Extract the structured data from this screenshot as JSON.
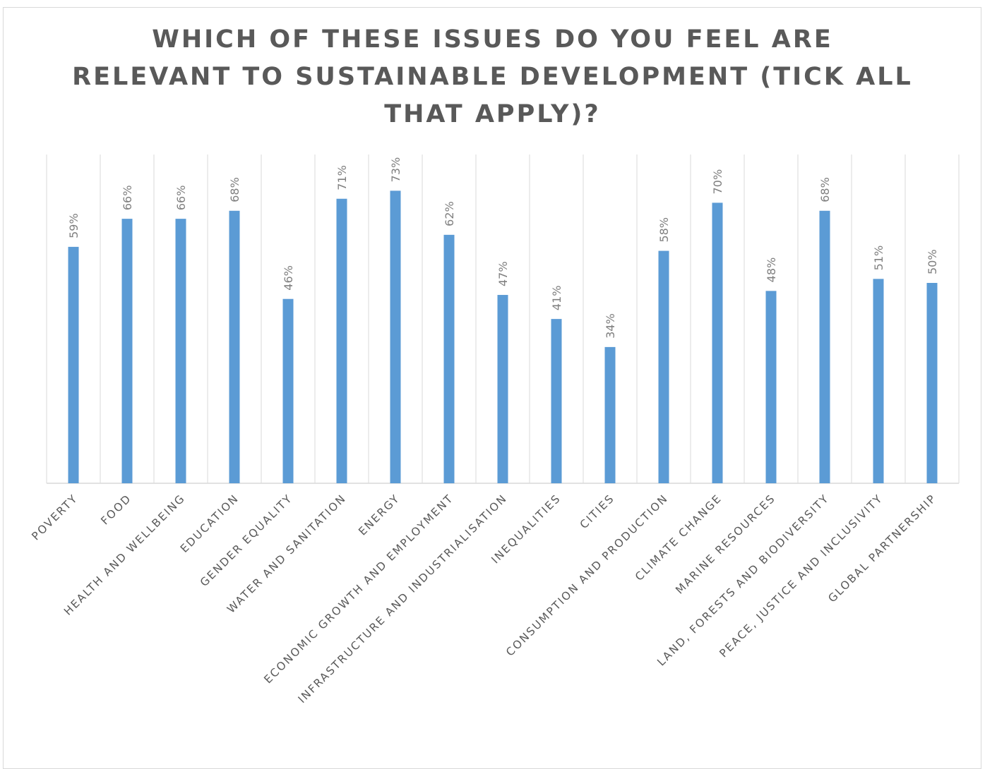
{
  "chart_data": {
    "type": "bar",
    "title_lines": [
      "WHICH OF THESE ISSUES DO YOU FEEL ARE",
      "RELEVANT TO SUSTAINABLE DEVELOPMENT (TICK ALL",
      "THAT APPLY)?"
    ],
    "categories": [
      "POVERTY",
      "FOOD",
      "HEALTH AND WELLBEING",
      "EDUCATION",
      "GENDER EQUALITY",
      "WATER AND SANITATION",
      "ENERGY",
      "ECONOMIC GROWTH AND EMPLOYMENT",
      "INFRASTRUCTURE AND INDUSTRIALISATION",
      "INEQUALITIES",
      "CITIES",
      "CONSUMPTION AND PRODUCTION",
      "CLIMATE CHANGE",
      "MARINE RESOURCES",
      "LAND, FORESTS AND BIODIVERSITY",
      "PEACE, JUSTICE AND INCLUSIVITY",
      "GLOBAL PARTNERSHIP"
    ],
    "values": [
      59,
      66,
      66,
      68,
      46,
      71,
      73,
      62,
      47,
      41,
      34,
      58,
      70,
      48,
      68,
      51,
      50
    ],
    "value_labels": [
      "59%",
      "66%",
      "66%",
      "68%",
      "46%",
      "71%",
      "73%",
      "62%",
      "47%",
      "41%",
      "34%",
      "58%",
      "70%",
      "48%",
      "68%",
      "51%",
      "50%"
    ],
    "unit": "%",
    "ylim": [
      0,
      80
    ],
    "grid": "vertical category separators",
    "legend": "none",
    "bar_color": "#5b9bd5",
    "grid_color": "#d9d9d9"
  }
}
